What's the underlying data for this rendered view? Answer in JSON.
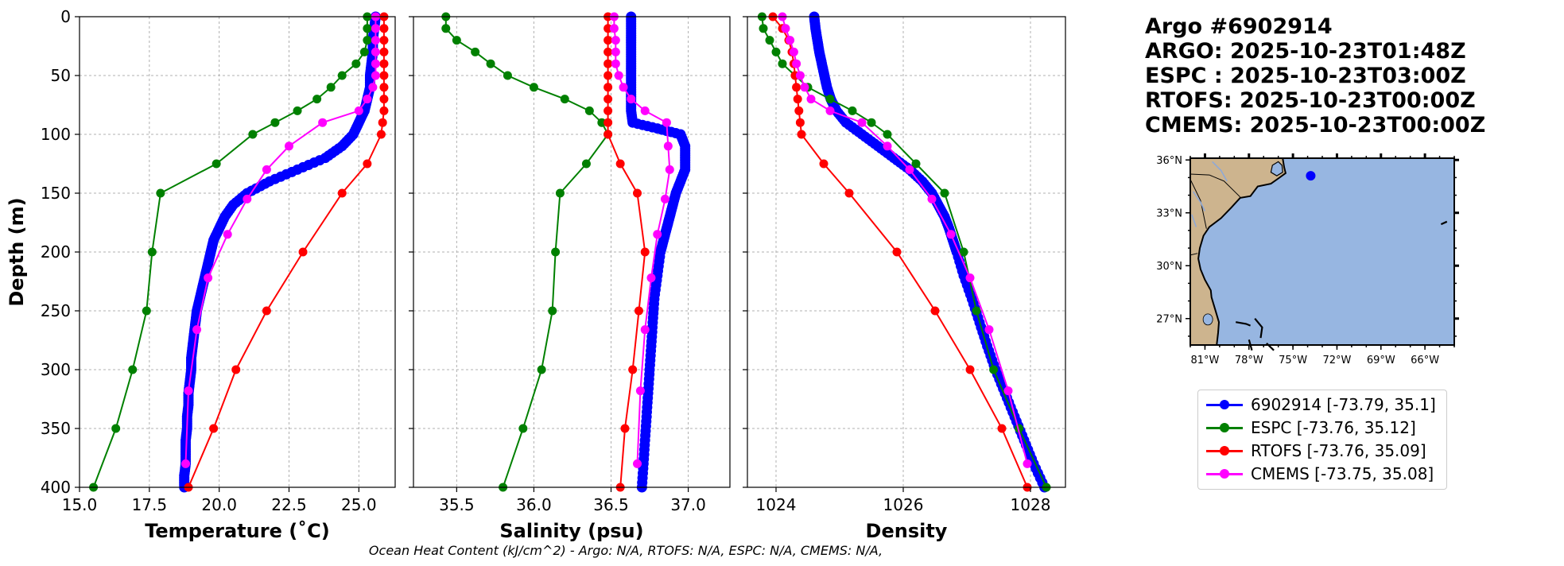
{
  "info": {
    "title": "Argo #6902914",
    "lines": [
      "ARGO: 2025-10-23T01:48Z",
      "ESPC : 2025-10-23T03:00Z",
      "RTOFS: 2025-10-23T00:00Z",
      "CMEMS: 2025-10-23T00:00Z"
    ]
  },
  "footer": "Ocean Heat Content (kJ/cm^2) - Argo: N/A,  RTOFS: N/A,  ESPC: N/A,  CMEMS: N/A,",
  "legend": [
    {
      "label": "6902914 [-73.79, 35.1]",
      "color": "#0000ff"
    },
    {
      "label": "ESPC [-73.76, 35.12]",
      "color": "#008000"
    },
    {
      "label": "RTOFS [-73.76, 35.09]",
      "color": "#ff0000"
    },
    {
      "label": "CMEMS [-73.75, 35.08]",
      "color": "#ff00ff"
    }
  ],
  "map": {
    "lat_labels": [
      "36°N",
      "33°N",
      "30°N",
      "27°N"
    ],
    "lon_labels": [
      "81°W",
      "78°W",
      "75°W",
      "72°W",
      "69°W",
      "66°W"
    ],
    "float_position": [
      -73.79,
      35.1
    ],
    "colors": {
      "ocean": "#97b6e1",
      "land": "#cdb48e",
      "float": "#0000ff"
    }
  },
  "chart_data": [
    {
      "type": "line",
      "xlabel": "Temperature (˚C)",
      "ylabel": "Depth (m)",
      "xlim": [
        15.0,
        26.3
      ],
      "ylim": [
        400,
        0
      ],
      "xticks": [
        "15.0",
        "17.5",
        "20.0",
        "22.5",
        "25.0"
      ],
      "yticks": [
        "0",
        "50",
        "100",
        "150",
        "200",
        "250",
        "300",
        "350",
        "400"
      ],
      "series": [
        {
          "name": "6902914",
          "color": "#0000ff",
          "depths": [
            0,
            10,
            20,
            30,
            40,
            50,
            60,
            70,
            80,
            90,
            100,
            110,
            120,
            130,
            140,
            150,
            160,
            170,
            180,
            190,
            200,
            210,
            220,
            230,
            240,
            250,
            260,
            270,
            280,
            290,
            300,
            310,
            320,
            330,
            340,
            350,
            360,
            370,
            380,
            390,
            400
          ],
          "values": [
            25.6,
            25.55,
            25.5,
            25.5,
            25.45,
            25.4,
            25.4,
            25.3,
            25.2,
            25.0,
            24.8,
            24.4,
            23.8,
            22.8,
            21.8,
            21.0,
            20.5,
            20.2,
            20.0,
            19.8,
            19.7,
            19.6,
            19.5,
            19.4,
            19.3,
            19.2,
            19.15,
            19.1,
            19.05,
            19.0,
            19.0,
            18.95,
            18.9,
            18.9,
            18.85,
            18.85,
            18.8,
            18.8,
            18.8,
            18.75,
            18.75
          ]
        },
        {
          "name": "ESPC",
          "color": "#008000",
          "depths": [
            0,
            10,
            20,
            30,
            40,
            50,
            60,
            70,
            80,
            90,
            100,
            125,
            150,
            200,
            250,
            300,
            350,
            400
          ],
          "values": [
            25.3,
            25.3,
            25.3,
            25.2,
            24.9,
            24.4,
            24.0,
            23.5,
            22.8,
            22.0,
            21.2,
            19.9,
            17.9,
            17.6,
            17.4,
            16.9,
            16.3,
            15.5
          ]
        },
        {
          "name": "RTOFS",
          "color": "#ff0000",
          "depths": [
            0,
            10,
            20,
            30,
            40,
            50,
            60,
            70,
            80,
            90,
            100,
            125,
            150,
            200,
            250,
            300,
            350,
            400
          ],
          "values": [
            25.9,
            25.9,
            25.9,
            25.9,
            25.9,
            25.9,
            25.9,
            25.9,
            25.9,
            25.85,
            25.8,
            25.3,
            24.4,
            23.0,
            21.7,
            20.6,
            19.8,
            18.9
          ]
        },
        {
          "name": "CMEMS",
          "color": "#ff00ff",
          "depths": [
            0,
            10,
            20,
            30,
            40,
            50,
            60,
            70,
            80,
            90,
            110,
            130,
            155,
            185,
            222,
            266,
            318,
            380
          ],
          "values": [
            25.6,
            25.6,
            25.6,
            25.6,
            25.6,
            25.6,
            25.5,
            25.3,
            25.0,
            23.7,
            22.5,
            21.7,
            21.0,
            20.3,
            19.6,
            19.2,
            18.9,
            18.8
          ]
        }
      ]
    },
    {
      "type": "line",
      "xlabel": "Salinity (psu)",
      "ylabel": "",
      "xlim": [
        35.22,
        37.27
      ],
      "ylim": [
        400,
        0
      ],
      "xticks": [
        "35.5",
        "36.0",
        "36.5",
        "37.0"
      ],
      "yticks": [],
      "series": [
        {
          "name": "6902914",
          "color": "#0000ff",
          "depths": [
            0,
            10,
            20,
            30,
            40,
            50,
            60,
            70,
            80,
            90,
            95,
            100,
            110,
            120,
            130,
            140,
            150,
            160,
            170,
            180,
            190,
            200,
            220,
            240,
            260,
            280,
            300,
            320,
            340,
            360,
            380,
            400
          ],
          "values": [
            36.63,
            36.63,
            36.63,
            36.63,
            36.63,
            36.63,
            36.63,
            36.63,
            36.63,
            36.64,
            36.8,
            36.95,
            36.98,
            36.98,
            36.98,
            36.95,
            36.92,
            36.9,
            36.88,
            36.86,
            36.84,
            36.82,
            36.8,
            36.78,
            36.77,
            36.76,
            36.75,
            36.74,
            36.73,
            36.72,
            36.71,
            36.7
          ]
        },
        {
          "name": "ESPC",
          "color": "#008000",
          "depths": [
            0,
            10,
            20,
            30,
            40,
            50,
            60,
            70,
            80,
            90,
            100,
            125,
            150,
            200,
            250,
            300,
            350,
            400
          ],
          "values": [
            35.43,
            35.43,
            35.5,
            35.62,
            35.72,
            35.83,
            36.0,
            36.2,
            36.36,
            36.44,
            36.48,
            36.34,
            36.17,
            36.14,
            36.12,
            36.05,
            35.93,
            35.8
          ]
        },
        {
          "name": "RTOFS",
          "color": "#ff0000",
          "depths": [
            0,
            10,
            20,
            30,
            40,
            50,
            60,
            70,
            80,
            90,
            100,
            125,
            150,
            200,
            250,
            300,
            350,
            400
          ],
          "values": [
            36.48,
            36.48,
            36.48,
            36.48,
            36.48,
            36.48,
            36.48,
            36.48,
            36.48,
            36.48,
            36.48,
            36.56,
            36.67,
            36.72,
            36.68,
            36.64,
            36.59,
            36.56
          ]
        },
        {
          "name": "CMEMS",
          "color": "#ff00ff",
          "depths": [
            0,
            10,
            20,
            30,
            40,
            50,
            60,
            70,
            80,
            90,
            110,
            130,
            155,
            185,
            222,
            266,
            318,
            380
          ],
          "values": [
            36.52,
            36.52,
            36.53,
            36.53,
            36.53,
            36.55,
            36.58,
            36.63,
            36.72,
            36.86,
            36.87,
            36.88,
            36.85,
            36.8,
            36.76,
            36.72,
            36.69,
            36.67
          ]
        }
      ]
    },
    {
      "type": "line",
      "xlabel": "Density",
      "ylabel": "",
      "xlim": [
        1023.55,
        1028.55
      ],
      "ylim": [
        400,
        0
      ],
      "xticks": [
        "1024",
        "1026",
        "1028"
      ],
      "yticks": [],
      "series": [
        {
          "name": "6902914",
          "color": "#0000ff",
          "depths": [
            0,
            10,
            20,
            30,
            40,
            50,
            60,
            70,
            80,
            90,
            100,
            110,
            120,
            130,
            140,
            150,
            160,
            170,
            180,
            190,
            200,
            220,
            240,
            260,
            280,
            300,
            320,
            340,
            360,
            380,
            400
          ],
          "values": [
            1024.6,
            1024.62,
            1024.65,
            1024.68,
            1024.72,
            1024.76,
            1024.8,
            1024.86,
            1024.95,
            1025.1,
            1025.35,
            1025.6,
            1025.85,
            1026.1,
            1026.3,
            1026.45,
            1026.55,
            1026.65,
            1026.72,
            1026.78,
            1026.84,
            1026.95,
            1027.08,
            1027.2,
            1027.32,
            1027.45,
            1027.6,
            1027.75,
            1027.9,
            1028.05,
            1028.22
          ]
        },
        {
          "name": "ESPC",
          "color": "#008000",
          "depths": [
            0,
            10,
            20,
            30,
            40,
            50,
            60,
            70,
            80,
            90,
            100,
            125,
            150,
            200,
            250,
            300,
            350,
            400
          ],
          "values": [
            1023.78,
            1023.8,
            1023.9,
            1024.0,
            1024.1,
            1024.3,
            1024.5,
            1024.85,
            1025.2,
            1025.5,
            1025.75,
            1026.2,
            1026.65,
            1026.95,
            1027.15,
            1027.42,
            1027.82,
            1028.25
          ]
        },
        {
          "name": "RTOFS",
          "color": "#ff0000",
          "depths": [
            0,
            10,
            20,
            30,
            40,
            50,
            60,
            70,
            80,
            90,
            100,
            125,
            150,
            200,
            250,
            300,
            350,
            400
          ],
          "values": [
            1023.95,
            1024.1,
            1024.2,
            1024.25,
            1024.28,
            1024.3,
            1024.32,
            1024.34,
            1024.36,
            1024.38,
            1024.4,
            1024.75,
            1025.15,
            1025.9,
            1026.5,
            1027.05,
            1027.55,
            1027.95
          ]
        },
        {
          "name": "CMEMS",
          "color": "#ff00ff",
          "depths": [
            0,
            10,
            20,
            30,
            40,
            50,
            60,
            70,
            80,
            90,
            110,
            130,
            155,
            185,
            222,
            266,
            318,
            380
          ],
          "values": [
            1024.1,
            1024.15,
            1024.22,
            1024.28,
            1024.32,
            1024.38,
            1024.45,
            1024.55,
            1024.85,
            1025.35,
            1025.75,
            1026.1,
            1026.45,
            1026.75,
            1027.05,
            1027.35,
            1027.65,
            1027.95
          ]
        }
      ]
    }
  ]
}
